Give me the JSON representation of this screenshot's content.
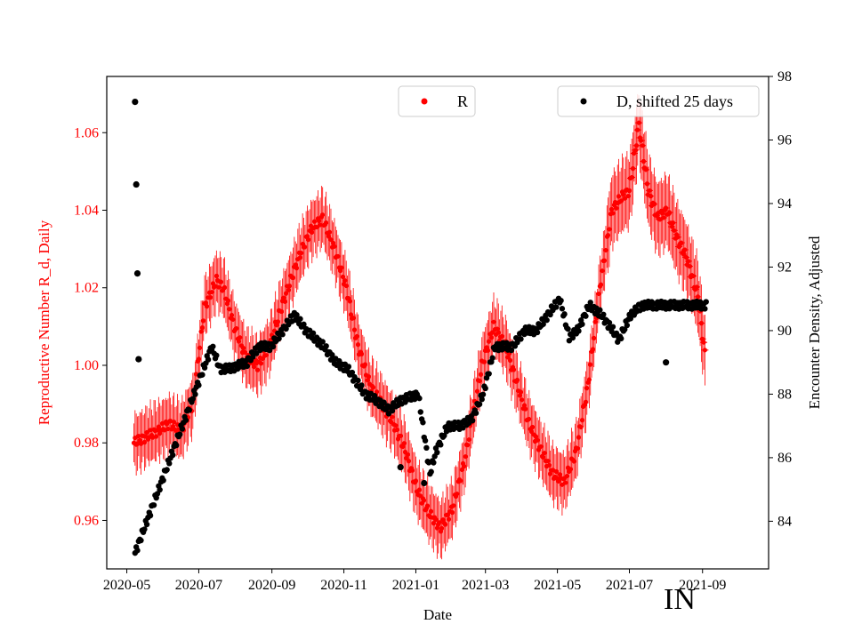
{
  "chart_data": {
    "type": "scatter",
    "xlabel": "Date",
    "ylabel_left": "Reproductive Number R_d, Daily",
    "ylabel_right": "Encounter Density, Adjusted",
    "region_label": "IN",
    "x_range": [
      "2020-04-14",
      "2021-10-27"
    ],
    "x_ticks": [
      "2020-05",
      "2020-07",
      "2020-09",
      "2020-11",
      "2021-01",
      "2021-03",
      "2021-05",
      "2021-07",
      "2021-09"
    ],
    "ylim_left": [
      0.9475,
      1.0745
    ],
    "yticks_left": [
      "0.96",
      "0.98",
      "1.00",
      "1.02",
      "1.04",
      "1.06"
    ],
    "ylim_right": [
      82.5,
      98.0
    ],
    "yticks_right": [
      "84",
      "86",
      "88",
      "90",
      "92",
      "94",
      "96",
      "98"
    ],
    "colors": {
      "left_axis": "#ff0000",
      "R": "#ff0000",
      "D": "#000000"
    },
    "legend": [
      {
        "label": "R",
        "color": "#ff0000",
        "position": "top-center"
      },
      {
        "label": "D, shifted 25 days",
        "color": "#000000",
        "position": "top-right"
      }
    ],
    "series": [
      {
        "name": "R",
        "axis": "left",
        "marker": "point with vertical error bar",
        "start_date": "2020-05-07",
        "knots": [
          [
            0,
            0.98
          ],
          [
            20,
            0.983
          ],
          [
            30,
            0.985
          ],
          [
            40,
            0.983
          ],
          [
            50,
            0.99
          ],
          [
            60,
            1.015
          ],
          [
            70,
            1.022
          ],
          [
            76,
            1.02
          ],
          [
            85,
            1.01
          ],
          [
            95,
            1.002
          ],
          [
            105,
            1.0
          ],
          [
            115,
            1.005
          ],
          [
            125,
            1.015
          ],
          [
            140,
            1.028
          ],
          [
            150,
            1.035
          ],
          [
            160,
            1.038
          ],
          [
            170,
            1.03
          ],
          [
            180,
            1.02
          ],
          [
            190,
            1.005
          ],
          [
            200,
            0.995
          ],
          [
            210,
            0.99
          ],
          [
            220,
            0.985
          ],
          [
            230,
            0.978
          ],
          [
            240,
            0.968
          ],
          [
            250,
            0.962
          ],
          [
            260,
            0.958
          ],
          [
            270,
            0.963
          ],
          [
            280,
            0.975
          ],
          [
            295,
            1.0
          ],
          [
            305,
            1.01
          ],
          [
            315,
            1.005
          ],
          [
            325,
            0.995
          ],
          [
            335,
            0.985
          ],
          [
            345,
            0.978
          ],
          [
            355,
            0.972
          ],
          [
            365,
            0.97
          ],
          [
            375,
            0.978
          ],
          [
            385,
            0.995
          ],
          [
            395,
            1.02
          ],
          [
            405,
            1.04
          ],
          [
            415,
            1.044
          ],
          [
            420,
            1.045
          ],
          [
            428,
            1.062
          ],
          [
            436,
            1.045
          ],
          [
            444,
            1.038
          ],
          [
            452,
            1.04
          ],
          [
            460,
            1.033
          ],
          [
            468,
            1.028
          ],
          [
            478,
            1.018
          ],
          [
            484,
            1.003
          ]
        ]
      },
      {
        "name": "D, shifted 25 days",
        "axis": "right",
        "marker": "point",
        "start_date": "2020-05-08",
        "outliers": [
          [
            0,
            97.2
          ],
          [
            1,
            94.6
          ],
          [
            2,
            91.8
          ],
          [
            3,
            89.1
          ],
          [
            225,
            85.7
          ],
          [
            245,
            85.2
          ],
          [
            450,
            89.0
          ]
        ],
        "knots": [
          [
            0,
            83.0
          ],
          [
            10,
            84.0
          ],
          [
            20,
            85.0
          ],
          [
            35,
            86.5
          ],
          [
            50,
            88.0
          ],
          [
            60,
            89.0
          ],
          [
            65,
            89.5
          ],
          [
            72,
            88.8
          ],
          [
            80,
            88.8
          ],
          [
            95,
            89.0
          ],
          [
            105,
            89.5
          ],
          [
            115,
            89.5
          ],
          [
            125,
            90.0
          ],
          [
            135,
            90.5
          ],
          [
            145,
            90.0
          ],
          [
            160,
            89.5
          ],
          [
            170,
            89.0
          ],
          [
            180,
            88.8
          ],
          [
            195,
            88.0
          ],
          [
            205,
            87.8
          ],
          [
            215,
            87.5
          ],
          [
            225,
            87.8
          ],
          [
            240,
            88.0
          ],
          [
            250,
            85.5
          ],
          [
            255,
            86.2
          ],
          [
            265,
            87.0
          ],
          [
            275,
            87.0
          ],
          [
            285,
            87.2
          ],
          [
            295,
            88.0
          ],
          [
            305,
            89.5
          ],
          [
            320,
            89.5
          ],
          [
            330,
            90.0
          ],
          [
            340,
            90.0
          ],
          [
            350,
            90.5
          ],
          [
            360,
            91.0
          ],
          [
            368,
            89.8
          ],
          [
            375,
            90.0
          ],
          [
            385,
            90.8
          ],
          [
            395,
            90.5
          ],
          [
            405,
            90.0
          ],
          [
            410,
            89.7
          ],
          [
            420,
            90.5
          ],
          [
            430,
            90.8
          ],
          [
            445,
            90.8
          ],
          [
            460,
            90.8
          ],
          [
            484,
            90.8
          ]
        ]
      }
    ]
  }
}
